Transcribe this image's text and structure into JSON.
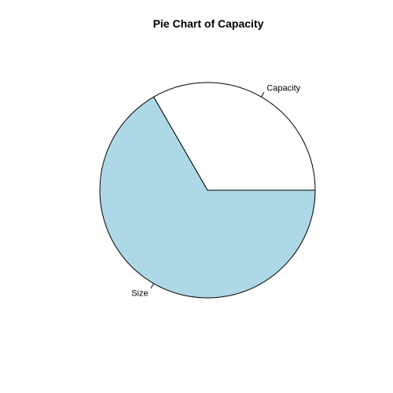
{
  "chart_data": {
    "type": "pie",
    "title": "Pie Chart of Capacity",
    "slices": [
      {
        "label": "Capacity",
        "value": 0.3333,
        "color": "#ffffff"
      },
      {
        "label": "Size",
        "value": 0.6667,
        "color": "#add8e6"
      }
    ],
    "start_angle_deg": 0,
    "direction": "counterclockwise",
    "border_color": "#000000"
  }
}
